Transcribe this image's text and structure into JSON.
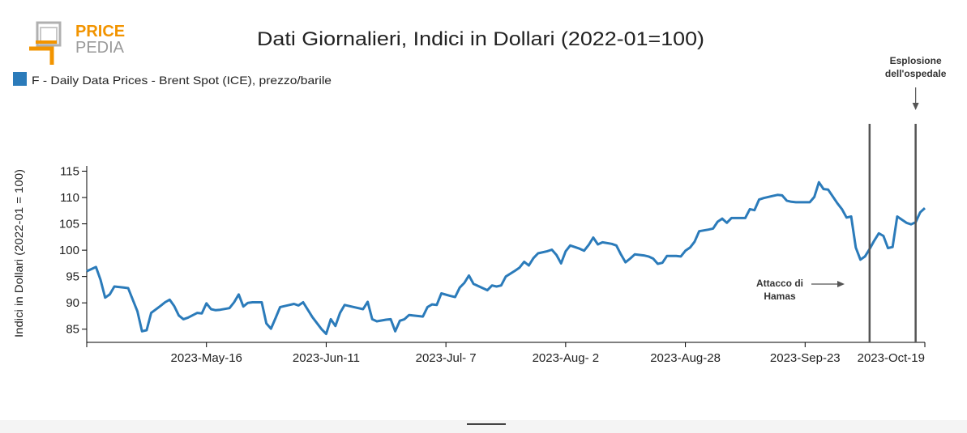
{
  "logo": {
    "word_top": "PRICE",
    "word_bottom": "PEDIA",
    "orange": "#f29400",
    "grey": "#9a9a9a"
  },
  "chart_data": {
    "type": "line",
    "title": "Dati Giornalieri, Indici in Dollari (2022-01=100)",
    "ylabel": "Indici in Dollari (2022-01 = 100)",
    "xlabel": "",
    "ylim": [
      82.5,
      116
    ],
    "yticks": [
      85,
      90,
      95,
      100,
      105,
      110,
      115
    ],
    "xlim": [
      "2023-04-20",
      "2023-10-19"
    ],
    "xticks": [
      {
        "date": "2023-05-16",
        "label": "2023-May-16"
      },
      {
        "date": "2023-06-11",
        "label": "2023-Jun-11"
      },
      {
        "date": "2023-07-07",
        "label": "2023-Jul- 7"
      },
      {
        "date": "2023-08-02",
        "label": "2023-Aug- 2"
      },
      {
        "date": "2023-08-28",
        "label": "2023-Aug-28"
      },
      {
        "date": "2023-09-23",
        "label": "2023-Sep-23"
      },
      {
        "date": "2023-10-19",
        "label": "2023-Oct-19"
      }
    ],
    "legend_position": "top-left",
    "grid": false,
    "series": [
      {
        "name": "F - Daily Data Prices - Brent Spot (ICE), prezzo/barile",
        "color": "#2b7bba",
        "points": [
          [
            "2023-04-20",
            96.0
          ],
          [
            "2023-04-22",
            96.8
          ],
          [
            "2023-04-23",
            94.4
          ],
          [
            "2023-04-24",
            91.0
          ],
          [
            "2023-04-25",
            91.6
          ],
          [
            "2023-04-26",
            93.1
          ],
          [
            "2023-04-28",
            92.9
          ],
          [
            "2023-04-29",
            92.8
          ],
          [
            "2023-05-01",
            88.4
          ],
          [
            "2023-05-02",
            84.6
          ],
          [
            "2023-05-03",
            84.8
          ],
          [
            "2023-05-04",
            88.1
          ],
          [
            "2023-05-06",
            89.4
          ],
          [
            "2023-05-07",
            90.1
          ],
          [
            "2023-05-08",
            90.6
          ],
          [
            "2023-05-09",
            89.4
          ],
          [
            "2023-05-10",
            87.6
          ],
          [
            "2023-05-11",
            86.9
          ],
          [
            "2023-05-12",
            87.2
          ],
          [
            "2023-05-14",
            88.1
          ],
          [
            "2023-05-15",
            88.0
          ],
          [
            "2023-05-16",
            89.9
          ],
          [
            "2023-05-17",
            88.8
          ],
          [
            "2023-05-18",
            88.6
          ],
          [
            "2023-05-19",
            88.7
          ],
          [
            "2023-05-21",
            89.0
          ],
          [
            "2023-05-22",
            90.1
          ],
          [
            "2023-05-23",
            91.6
          ],
          [
            "2023-05-24",
            89.3
          ],
          [
            "2023-05-25",
            90.0
          ],
          [
            "2023-05-26",
            90.1
          ],
          [
            "2023-05-28",
            90.1
          ],
          [
            "2023-05-29",
            86.1
          ],
          [
            "2023-05-30",
            85.1
          ],
          [
            "2023-05-31",
            87.1
          ],
          [
            "2023-06-01",
            89.2
          ],
          [
            "2023-06-03",
            89.6
          ],
          [
            "2023-06-04",
            89.8
          ],
          [
            "2023-06-05",
            89.5
          ],
          [
            "2023-06-06",
            90.1
          ],
          [
            "2023-06-08",
            87.3
          ],
          [
            "2023-06-10",
            85.0
          ],
          [
            "2023-06-11",
            84.1
          ],
          [
            "2023-06-12",
            86.9
          ],
          [
            "2023-06-13",
            85.6
          ],
          [
            "2023-06-14",
            88.1
          ],
          [
            "2023-06-15",
            89.6
          ],
          [
            "2023-06-17",
            89.2
          ],
          [
            "2023-06-19",
            88.8
          ],
          [
            "2023-06-20",
            90.2
          ],
          [
            "2023-06-21",
            86.9
          ],
          [
            "2023-06-22",
            86.5
          ],
          [
            "2023-06-24",
            86.8
          ],
          [
            "2023-06-25",
            86.9
          ],
          [
            "2023-06-26",
            84.6
          ],
          [
            "2023-06-27",
            86.6
          ],
          [
            "2023-06-28",
            86.9
          ],
          [
            "2023-06-29",
            87.7
          ],
          [
            "2023-07-01",
            87.5
          ],
          [
            "2023-07-02",
            87.4
          ],
          [
            "2023-07-03",
            89.2
          ],
          [
            "2023-07-04",
            89.7
          ],
          [
            "2023-07-05",
            89.6
          ],
          [
            "2023-07-06",
            91.8
          ],
          [
            "2023-07-08",
            91.3
          ],
          [
            "2023-07-09",
            91.1
          ],
          [
            "2023-07-10",
            92.9
          ],
          [
            "2023-07-11",
            93.8
          ],
          [
            "2023-07-12",
            95.2
          ],
          [
            "2023-07-13",
            93.6
          ],
          [
            "2023-07-15",
            92.8
          ],
          [
            "2023-07-16",
            92.4
          ],
          [
            "2023-07-17",
            93.3
          ],
          [
            "2023-07-18",
            93.1
          ],
          [
            "2023-07-19",
            93.3
          ],
          [
            "2023-07-20",
            95.0
          ],
          [
            "2023-07-22",
            96.1
          ],
          [
            "2023-07-23",
            96.7
          ],
          [
            "2023-07-24",
            97.8
          ],
          [
            "2023-07-25",
            97.1
          ],
          [
            "2023-07-26",
            98.5
          ],
          [
            "2023-07-27",
            99.4
          ],
          [
            "2023-07-29",
            99.8
          ],
          [
            "2023-07-30",
            100.1
          ],
          [
            "2023-07-31",
            99.1
          ],
          [
            "2023-08-01",
            97.5
          ],
          [
            "2023-08-02",
            99.8
          ],
          [
            "2023-08-03",
            100.9
          ],
          [
            "2023-08-05",
            100.3
          ],
          [
            "2023-08-06",
            99.9
          ],
          [
            "2023-08-07",
            101.0
          ],
          [
            "2023-08-08",
            102.4
          ],
          [
            "2023-08-09",
            101.1
          ],
          [
            "2023-08-10",
            101.5
          ],
          [
            "2023-08-12",
            101.2
          ],
          [
            "2023-08-13",
            100.9
          ],
          [
            "2023-08-14",
            99.2
          ],
          [
            "2023-08-15",
            97.7
          ],
          [
            "2023-08-16",
            98.4
          ],
          [
            "2023-08-17",
            99.2
          ],
          [
            "2023-08-19",
            99.0
          ],
          [
            "2023-08-20",
            98.8
          ],
          [
            "2023-08-21",
            98.4
          ],
          [
            "2023-08-22",
            97.4
          ],
          [
            "2023-08-23",
            97.6
          ],
          [
            "2023-08-24",
            98.9
          ],
          [
            "2023-08-26",
            98.9
          ],
          [
            "2023-08-27",
            98.8
          ],
          [
            "2023-08-28",
            99.9
          ],
          [
            "2023-08-29",
            100.5
          ],
          [
            "2023-08-30",
            101.6
          ],
          [
            "2023-08-31",
            103.6
          ],
          [
            "2023-09-02",
            103.9
          ],
          [
            "2023-09-03",
            104.1
          ],
          [
            "2023-09-04",
            105.4
          ],
          [
            "2023-09-05",
            106.0
          ],
          [
            "2023-09-06",
            105.2
          ],
          [
            "2023-09-07",
            106.1
          ],
          [
            "2023-09-09",
            106.1
          ],
          [
            "2023-09-10",
            106.1
          ],
          [
            "2023-09-11",
            107.8
          ],
          [
            "2023-09-12",
            107.6
          ],
          [
            "2023-09-13",
            109.6
          ],
          [
            "2023-09-14",
            109.9
          ],
          [
            "2023-09-16",
            110.3
          ],
          [
            "2023-09-17",
            110.5
          ],
          [
            "2023-09-18",
            110.4
          ],
          [
            "2023-09-19",
            109.4
          ],
          [
            "2023-09-20",
            109.2
          ],
          [
            "2023-09-21",
            109.1
          ],
          [
            "2023-09-23",
            109.1
          ],
          [
            "2023-09-24",
            109.1
          ],
          [
            "2023-09-25",
            110.1
          ],
          [
            "2023-09-26",
            112.9
          ],
          [
            "2023-09-27",
            111.6
          ],
          [
            "2023-09-28",
            111.5
          ],
          [
            "2023-09-30",
            108.9
          ],
          [
            "2023-10-01",
            107.8
          ],
          [
            "2023-10-02",
            106.2
          ],
          [
            "2023-10-03",
            106.4
          ],
          [
            "2023-10-04",
            100.5
          ],
          [
            "2023-10-05",
            98.2
          ],
          [
            "2023-10-06",
            98.8
          ],
          [
            "2023-10-07",
            100.2
          ],
          [
            "2023-10-08",
            101.8
          ],
          [
            "2023-10-09",
            103.2
          ],
          [
            "2023-10-10",
            102.7
          ],
          [
            "2023-10-11",
            100.4
          ],
          [
            "2023-10-12",
            100.6
          ],
          [
            "2023-10-13",
            106.4
          ],
          [
            "2023-10-14",
            105.8
          ],
          [
            "2023-10-15",
            105.2
          ],
          [
            "2023-10-16",
            104.9
          ],
          [
            "2023-10-17",
            105.3
          ],
          [
            "2023-10-18",
            107.2
          ],
          [
            "2023-10-19",
            108.0
          ]
        ]
      }
    ],
    "events": [
      {
        "date": "2023-10-07",
        "lines": [
          "Attacco di",
          "Hamas"
        ]
      },
      {
        "date": "2023-10-17",
        "lines": [
          "Esplosione",
          "dell'ospedale"
        ]
      }
    ]
  }
}
